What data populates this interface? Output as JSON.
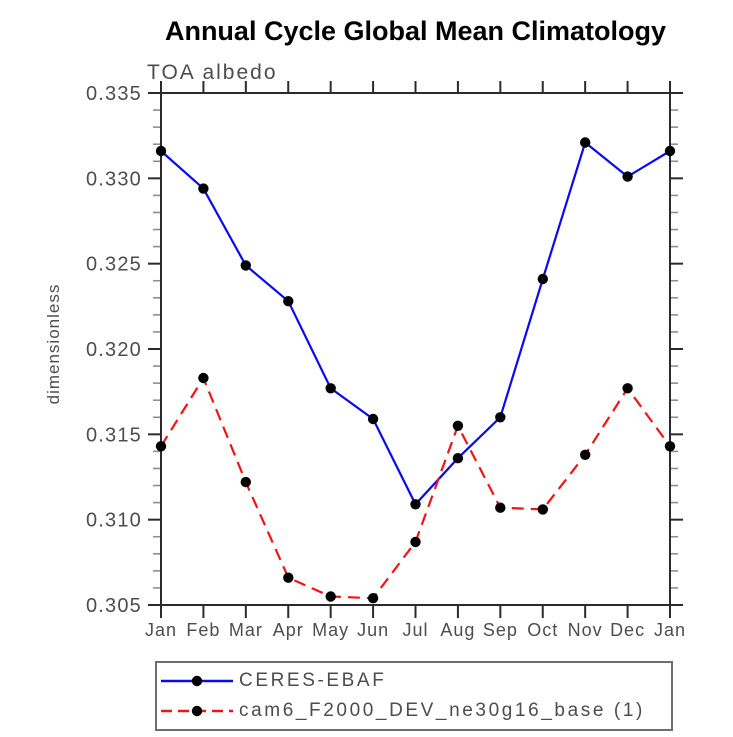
{
  "chart": {
    "title": "Annual Cycle Global Mean Climatology",
    "subtitle": "TOA albedo",
    "ylabel": "dimensionless"
  },
  "chart_data": {
    "type": "line",
    "title": "Annual Cycle Global Mean Climatology",
    "subtitle": "TOA albedo",
    "xlabel": "",
    "ylabel": "dimensionless",
    "categories": [
      "Jan",
      "Feb",
      "Mar",
      "Apr",
      "May",
      "Jun",
      "Jul",
      "Aug",
      "Sep",
      "Oct",
      "Nov",
      "Dec",
      "Jan"
    ],
    "ylim": [
      0.305,
      0.335
    ],
    "ytick_step": 0.005,
    "yminor_step": 0.001,
    "ytick_decimals": 3,
    "grid": false,
    "legend_position": "bottom",
    "series": [
      {
        "name": "CERES-EBAF",
        "color": "#0a0af0",
        "line_style": "solid",
        "marker": "circle",
        "marker_color": "#000000",
        "values": [
          0.3316,
          0.3294,
          0.3249,
          0.3228,
          0.3177,
          0.3159,
          0.3109,
          0.3136,
          0.316,
          0.3241,
          0.3321,
          0.3301,
          0.3316
        ]
      },
      {
        "name": "cam6_F2000_DEV_ne30g16_base (1)",
        "color": "#f01414",
        "line_style": "dashed",
        "marker": "circle",
        "marker_color": "#000000",
        "values": [
          0.3143,
          0.3183,
          0.3122,
          0.3066,
          0.3055,
          0.3054,
          0.3087,
          0.3155,
          0.3107,
          0.3106,
          0.3138,
          0.3177,
          0.3143
        ]
      }
    ]
  },
  "style_colors": {
    "axis": "#2b2b2b",
    "minor_tick": "#8f8f8f",
    "tick_label": "#4d4d4d"
  }
}
